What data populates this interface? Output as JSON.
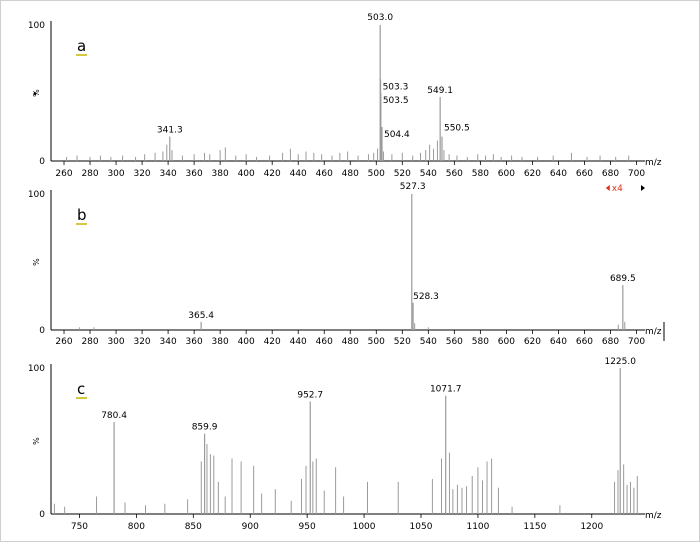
{
  "chart_data": [
    {
      "type": "spectrum",
      "panel_label": "a",
      "xlabel": "m/z",
      "ylabel": "%",
      "y_ticks": [
        "0",
        "100"
      ],
      "xlim": [
        250,
        705
      ],
      "x_ticks": [
        260,
        280,
        300,
        320,
        340,
        360,
        380,
        400,
        420,
        440,
        460,
        480,
        500,
        520,
        540,
        560,
        580,
        600,
        620,
        640,
        660,
        680,
        700
      ],
      "magnification": "x4",
      "labeled_peaks": [
        {
          "mz": 341.3,
          "intensity": 18,
          "label": "341.3"
        },
        {
          "mz": 503.0,
          "intensity": 100,
          "label": "503.0"
        },
        {
          "mz": 503.3,
          "intensity": 60,
          "label": "503.3"
        },
        {
          "mz": 503.5,
          "intensity": 50,
          "label": "503.5"
        },
        {
          "mz": 504.4,
          "intensity": 25,
          "label": "504.4"
        },
        {
          "mz": 549.1,
          "intensity": 47,
          "label": "549.1"
        },
        {
          "mz": 550.5,
          "intensity": 18,
          "label": "550.5"
        }
      ],
      "minor_peaks": [
        {
          "mz": 262,
          "intensity": 3
        },
        {
          "mz": 270,
          "intensity": 4
        },
        {
          "mz": 280,
          "intensity": 3
        },
        {
          "mz": 288,
          "intensity": 4
        },
        {
          "mz": 296,
          "intensity": 3
        },
        {
          "mz": 305,
          "intensity": 4
        },
        {
          "mz": 315,
          "intensity": 3
        },
        {
          "mz": 322,
          "intensity": 5
        },
        {
          "mz": 330,
          "intensity": 6
        },
        {
          "mz": 336,
          "intensity": 7
        },
        {
          "mz": 339,
          "intensity": 12
        },
        {
          "mz": 343,
          "intensity": 8
        },
        {
          "mz": 351,
          "intensity": 4
        },
        {
          "mz": 360,
          "intensity": 5
        },
        {
          "mz": 368,
          "intensity": 6
        },
        {
          "mz": 372,
          "intensity": 5
        },
        {
          "mz": 380,
          "intensity": 8
        },
        {
          "mz": 384,
          "intensity": 10
        },
        {
          "mz": 392,
          "intensity": 4
        },
        {
          "mz": 400,
          "intensity": 5
        },
        {
          "mz": 408,
          "intensity": 3
        },
        {
          "mz": 418,
          "intensity": 4
        },
        {
          "mz": 428,
          "intensity": 6
        },
        {
          "mz": 434,
          "intensity": 9
        },
        {
          "mz": 440,
          "intensity": 5
        },
        {
          "mz": 446,
          "intensity": 7
        },
        {
          "mz": 452,
          "intensity": 6
        },
        {
          "mz": 458,
          "intensity": 5
        },
        {
          "mz": 466,
          "intensity": 4
        },
        {
          "mz": 472,
          "intensity": 6
        },
        {
          "mz": 478,
          "intensity": 7
        },
        {
          "mz": 486,
          "intensity": 4
        },
        {
          "mz": 494,
          "intensity": 5
        },
        {
          "mz": 498,
          "intensity": 6
        },
        {
          "mz": 501,
          "intensity": 9
        },
        {
          "mz": 505.5,
          "intensity": 7
        },
        {
          "mz": 512,
          "intensity": 5
        },
        {
          "mz": 520,
          "intensity": 6
        },
        {
          "mz": 528,
          "intensity": 4
        },
        {
          "mz": 534,
          "intensity": 6
        },
        {
          "mz": 538,
          "intensity": 8
        },
        {
          "mz": 541,
          "intensity": 12
        },
        {
          "mz": 544,
          "intensity": 9
        },
        {
          "mz": 547,
          "intensity": 15
        },
        {
          "mz": 552,
          "intensity": 8
        },
        {
          "mz": 556,
          "intensity": 5
        },
        {
          "mz": 562,
          "intensity": 4
        },
        {
          "mz": 570,
          "intensity": 3
        },
        {
          "mz": 578,
          "intensity": 5
        },
        {
          "mz": 584,
          "intensity": 4
        },
        {
          "mz": 590,
          "intensity": 5
        },
        {
          "mz": 596,
          "intensity": 3
        },
        {
          "mz": 604,
          "intensity": 4
        },
        {
          "mz": 612,
          "intensity": 3
        },
        {
          "mz": 624,
          "intensity": 3
        },
        {
          "mz": 636,
          "intensity": 4
        },
        {
          "mz": 650,
          "intensity": 6
        },
        {
          "mz": 662,
          "intensity": 3
        },
        {
          "mz": 672,
          "intensity": 4
        },
        {
          "mz": 684,
          "intensity": 3
        },
        {
          "mz": 694,
          "intensity": 4
        }
      ]
    },
    {
      "type": "spectrum",
      "panel_label": "b",
      "xlabel": "m/z",
      "ylabel": "%",
      "y_ticks": [
        "0",
        "100"
      ],
      "xlim": [
        250,
        705
      ],
      "x_ticks": [
        260,
        280,
        300,
        320,
        340,
        360,
        380,
        400,
        420,
        440,
        460,
        480,
        500,
        520,
        540,
        560,
        580,
        600,
        620,
        640,
        660,
        680,
        700
      ],
      "labeled_peaks": [
        {
          "mz": 365.4,
          "intensity": 6,
          "label": "365.4"
        },
        {
          "mz": 527.3,
          "intensity": 100,
          "label": "527.3"
        },
        {
          "mz": 528.3,
          "intensity": 20,
          "label": "528.3"
        },
        {
          "mz": 689.5,
          "intensity": 33,
          "label": "689.5"
        }
      ],
      "minor_peaks": [
        {
          "mz": 272,
          "intensity": 2
        },
        {
          "mz": 283,
          "intensity": 2
        },
        {
          "mz": 529.5,
          "intensity": 5
        },
        {
          "mz": 540,
          "intensity": 2
        },
        {
          "mz": 686,
          "intensity": 4
        },
        {
          "mz": 691,
          "intensity": 6
        }
      ]
    },
    {
      "type": "spectrum",
      "panel_label": "c",
      "xlabel": "m/z",
      "ylabel": "%",
      "y_ticks": [
        "0",
        "100"
      ],
      "xlim": [
        725,
        1245
      ],
      "x_ticks": [
        750,
        800,
        850,
        900,
        950,
        1000,
        1050,
        1100,
        1150,
        1200
      ],
      "labeled_peaks": [
        {
          "mz": 780.4,
          "intensity": 63,
          "label": "780.4"
        },
        {
          "mz": 859.9,
          "intensity": 55,
          "label": "859.9"
        },
        {
          "mz": 952.7,
          "intensity": 77,
          "label": "952.7"
        },
        {
          "mz": 1071.7,
          "intensity": 81,
          "label": "1071.7"
        },
        {
          "mz": 1225.0,
          "intensity": 100,
          "label": "1225.0"
        }
      ],
      "minor_peaks": [
        {
          "mz": 728,
          "intensity": 7
        },
        {
          "mz": 737,
          "intensity": 5
        },
        {
          "mz": 765,
          "intensity": 12
        },
        {
          "mz": 790,
          "intensity": 8
        },
        {
          "mz": 808,
          "intensity": 6
        },
        {
          "mz": 825,
          "intensity": 7
        },
        {
          "mz": 845,
          "intensity": 10
        },
        {
          "mz": 857,
          "intensity": 36
        },
        {
          "mz": 862,
          "intensity": 48
        },
        {
          "mz": 865,
          "intensity": 41
        },
        {
          "mz": 868,
          "intensity": 40
        },
        {
          "mz": 872,
          "intensity": 22
        },
        {
          "mz": 878,
          "intensity": 12
        },
        {
          "mz": 884,
          "intensity": 38
        },
        {
          "mz": 892,
          "intensity": 36
        },
        {
          "mz": 903,
          "intensity": 33
        },
        {
          "mz": 910,
          "intensity": 14
        },
        {
          "mz": 922,
          "intensity": 17
        },
        {
          "mz": 936,
          "intensity": 9
        },
        {
          "mz": 945,
          "intensity": 24
        },
        {
          "mz": 949,
          "intensity": 33
        },
        {
          "mz": 955,
          "intensity": 36
        },
        {
          "mz": 958,
          "intensity": 38
        },
        {
          "mz": 965,
          "intensity": 16
        },
        {
          "mz": 975,
          "intensity": 32
        },
        {
          "mz": 982,
          "intensity": 12
        },
        {
          "mz": 1003,
          "intensity": 22
        },
        {
          "mz": 1030,
          "intensity": 22
        },
        {
          "mz": 1060,
          "intensity": 24
        },
        {
          "mz": 1068,
          "intensity": 38
        },
        {
          "mz": 1075,
          "intensity": 42
        },
        {
          "mz": 1078,
          "intensity": 17
        },
        {
          "mz": 1082,
          "intensity": 20
        },
        {
          "mz": 1086,
          "intensity": 18
        },
        {
          "mz": 1090,
          "intensity": 19
        },
        {
          "mz": 1095,
          "intensity": 26
        },
        {
          "mz": 1100,
          "intensity": 32
        },
        {
          "mz": 1104,
          "intensity": 23
        },
        {
          "mz": 1108,
          "intensity": 36
        },
        {
          "mz": 1112,
          "intensity": 38
        },
        {
          "mz": 1118,
          "intensity": 18
        },
        {
          "mz": 1130,
          "intensity": 5
        },
        {
          "mz": 1172,
          "intensity": 6
        },
        {
          "mz": 1220,
          "intensity": 22
        },
        {
          "mz": 1223,
          "intensity": 30
        },
        {
          "mz": 1228,
          "intensity": 34
        },
        {
          "mz": 1231,
          "intensity": 20
        },
        {
          "mz": 1234,
          "intensity": 22
        },
        {
          "mz": 1237,
          "intensity": 18
        },
        {
          "mz": 1240,
          "intensity": 26
        }
      ]
    }
  ],
  "colors": {
    "axis": "#000000",
    "peak": "#9a9a9a",
    "panel_label_underline": "#c8b400",
    "magnification": "#e0301e"
  }
}
